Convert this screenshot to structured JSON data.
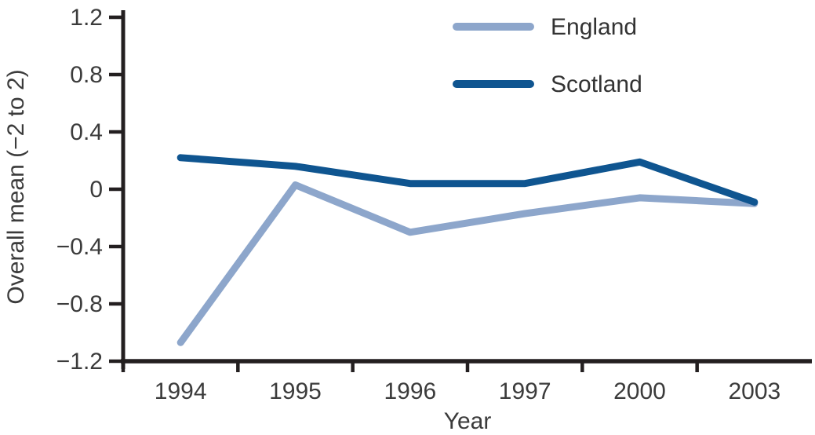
{
  "chart_data": {
    "type": "line",
    "title": "",
    "xlabel": "Year",
    "ylabel": "Overall mean (−2 to 2)",
    "categories": [
      "1994",
      "1995",
      "1996",
      "1997",
      "2000",
      "2003"
    ],
    "y_ticks": [
      1.2,
      0.8,
      0.4,
      0,
      -0.4,
      -0.8,
      -1.2
    ],
    "y_tick_labels": [
      "1.2",
      "0.8",
      "0.4",
      "0",
      "−0.4",
      "−0.8",
      "−1.2"
    ],
    "ylim": [
      -1.2,
      1.2
    ],
    "grid": "off",
    "legend_position": "top-center",
    "series": [
      {
        "name": "England",
        "color": "#8DA6CB",
        "values": [
          -1.07,
          0.03,
          -0.3,
          -0.17,
          -0.06,
          -0.1
        ]
      },
      {
        "name": "Scotland",
        "color": "#0F5590",
        "values": [
          0.22,
          0.16,
          0.04,
          0.04,
          0.19,
          -0.09
        ]
      }
    ],
    "axis_color": "#231f20",
    "text_color": "#3b3b3b"
  }
}
